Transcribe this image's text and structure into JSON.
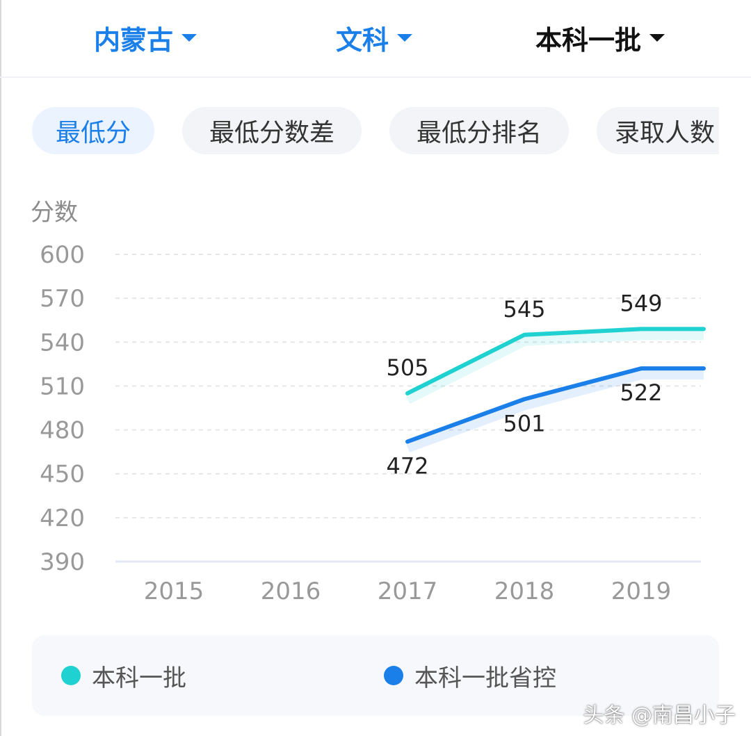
{
  "header": {
    "province": "内蒙古",
    "subject": "文科",
    "batch": "本科一批"
  },
  "tabs": [
    "最低分",
    "最低分数差",
    "最低分排名",
    "录取人数"
  ],
  "active_tab": 0,
  "colors": {
    "accent": "#1a7fe8",
    "series1": "#1fd1d1",
    "series2": "#1a7fe8"
  },
  "chart_data": {
    "type": "line",
    "ylabel": "分数",
    "xlabel": "",
    "ylim": [
      390,
      600
    ],
    "yticks": [
      600,
      570,
      540,
      510,
      480,
      450,
      420,
      390
    ],
    "categories": [
      "2015",
      "2016",
      "2017",
      "2018",
      "2019"
    ],
    "grid": true,
    "legend_position": "bottom",
    "series": [
      {
        "name": "本科一批",
        "values": [
          null,
          null,
          505,
          545,
          549
        ],
        "color": "#1fd1d1"
      },
      {
        "name": "本科一批省控",
        "values": [
          null,
          null,
          472,
          501,
          522
        ],
        "color": "#1a7fe8"
      }
    ]
  },
  "watermark": "头条 @南昌小子"
}
